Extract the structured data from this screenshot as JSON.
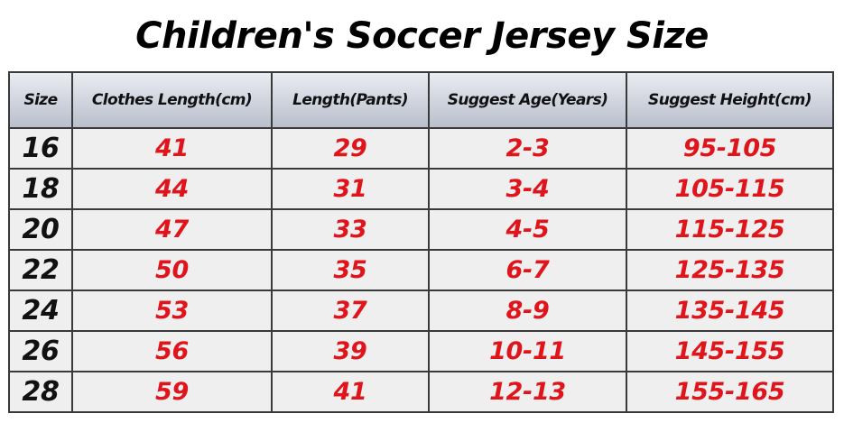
{
  "title": "Children's Soccer Jersey Size",
  "table": {
    "headers": [
      "Size",
      "Clothes Length(cm)",
      "Length(Pants)",
      "Suggest Age(Years)",
      "Suggest Height(cm)"
    ],
    "rows": [
      [
        "16",
        "41",
        "29",
        "2-3",
        "95-105"
      ],
      [
        "18",
        "44",
        "31",
        "3-4",
        "105-115"
      ],
      [
        "20",
        "47",
        "33",
        "4-5",
        "115-125"
      ],
      [
        "22",
        "50",
        "35",
        "6-7",
        "125-135"
      ],
      [
        "24",
        "53",
        "37",
        "8-9",
        "135-145"
      ],
      [
        "26",
        "56",
        "39",
        "10-11",
        "145-155"
      ],
      [
        "28",
        "59",
        "41",
        "12-13",
        "155-165"
      ]
    ]
  },
  "colors": {
    "value_text": "#e0141b",
    "size_text": "#111111",
    "header_bg": "#cfd3dd",
    "row_bg": "#efefef",
    "border": "#3a3a3a"
  }
}
